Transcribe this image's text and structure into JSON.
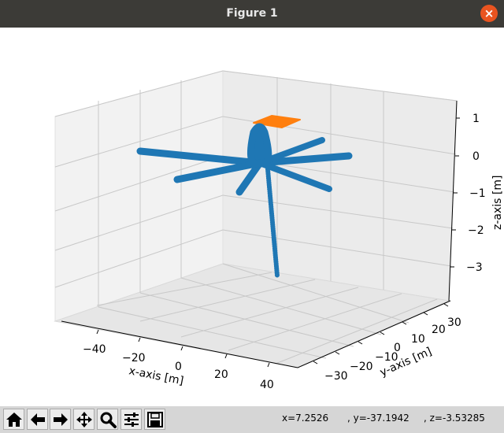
{
  "window": {
    "title": "Figure 1",
    "close_glyph": "×"
  },
  "toolbar": {
    "buttons": [
      {
        "name": "home-button",
        "icon": "home-icon"
      },
      {
        "name": "back-button",
        "icon": "arrow-left-icon"
      },
      {
        "name": "forward-button",
        "icon": "arrow-right-icon"
      },
      {
        "name": "pan-button",
        "icon": "move-icon"
      },
      {
        "name": "zoom-button",
        "icon": "magnifier-icon"
      },
      {
        "name": "configure-subplots-button",
        "icon": "sliders-icon"
      },
      {
        "name": "save-button",
        "icon": "floppy-disk-icon"
      }
    ],
    "coords": {
      "x": "x=7.2526",
      "y": ", y=-37.1942",
      "z": ", z=-3.53285"
    }
  },
  "chart_data": {
    "type": "scatter",
    "projection": "3d",
    "xlabel": "x-axis [m]",
    "ylabel": "y-axis [m]",
    "zlabel": "z-axis [m]",
    "x_ticks": [
      "−40",
      "−20",
      "0",
      "20",
      "40"
    ],
    "y_ticks": [
      "−30",
      "−20",
      "−10",
      "0",
      "10",
      "20",
      "30"
    ],
    "z_ticks": [
      "1",
      "0",
      "−1",
      "−2",
      "−3"
    ],
    "grid": true,
    "series": [
      {
        "color": "#1f77b4",
        "marker": "circle",
        "description_points": [
          {
            "x": 0,
            "y": 0,
            "z": 0.1
          },
          {
            "x": -40,
            "y": 20,
            "z": 0.1
          },
          {
            "x": -30,
            "y": -20,
            "z": 0.1
          },
          {
            "x": 30,
            "y": 10,
            "z": 0.1
          },
          {
            "x": 20,
            "y": 30,
            "z": 0.1
          },
          {
            "x": 15,
            "y": -25,
            "z": 0.1
          },
          {
            "x": 0,
            "y": -10,
            "z": -3.3
          }
        ]
      },
      {
        "color": "#ff7f0e",
        "marker": "square",
        "position": {
          "x": 0,
          "y": 0,
          "z": 1
        }
      }
    ]
  }
}
